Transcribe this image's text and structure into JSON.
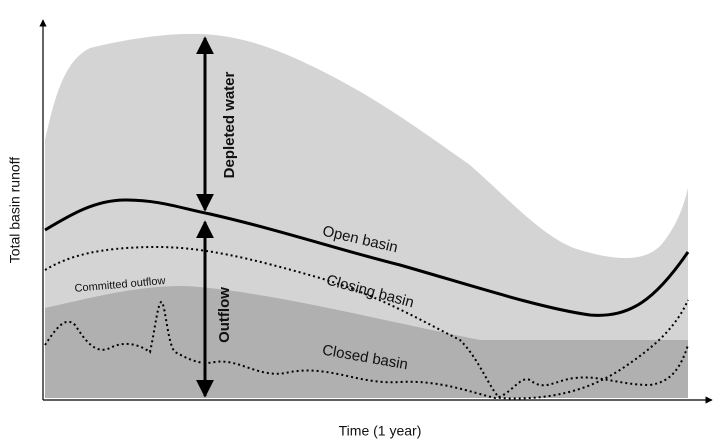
{
  "axes": {
    "y_label": "Total basin runoff",
    "x_label": "Time (1 year)"
  },
  "annotations": {
    "depleted": "Depleted water",
    "outflow": "Outflow",
    "committed": "Committed outflow"
  },
  "curves": {
    "open": "Open basin",
    "closing": "Closing basin",
    "closed": "Closed basin"
  }
}
